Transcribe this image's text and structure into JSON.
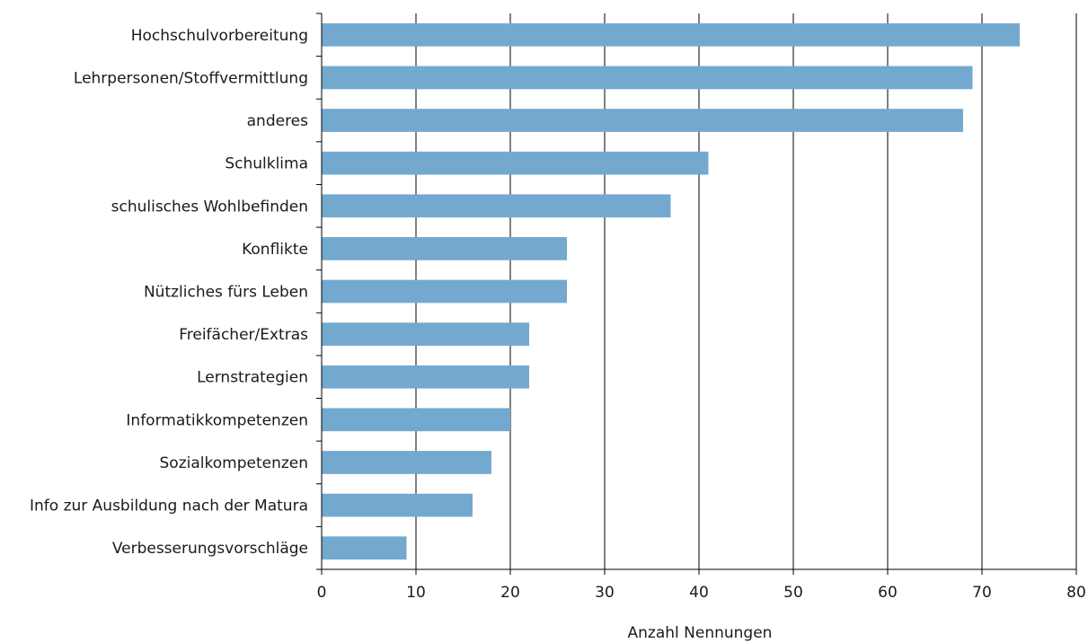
{
  "chart_data": {
    "type": "bar",
    "orientation": "horizontal",
    "categories": [
      "Hochschulvorbereitung",
      "Lehrpersonen/Stoffvermittlung",
      "anderes",
      "Schulklima",
      "schulisches Wohlbefinden",
      "Konflikte",
      "Nützliches fürs Leben",
      "Freifächer/Extras",
      "Lernstrategien",
      "Informatikkompetenzen",
      "Sozialkompetenzen",
      "Info zur Ausbildung nach der Matura",
      "Verbesserungsvorschläge"
    ],
    "values": [
      74,
      69,
      68,
      41,
      37,
      26,
      26,
      22,
      22,
      20,
      18,
      16,
      9
    ],
    "title": "",
    "xlabel": "Anzahl Nennungen",
    "ylabel": "",
    "xlim": [
      0,
      80
    ],
    "xticks": [
      "0",
      "10",
      "20",
      "30",
      "40",
      "50",
      "60",
      "70",
      "80"
    ],
    "grid": "vertical",
    "legend": "none",
    "bar_color": "#74a9cf",
    "grid_color": "#000000"
  }
}
